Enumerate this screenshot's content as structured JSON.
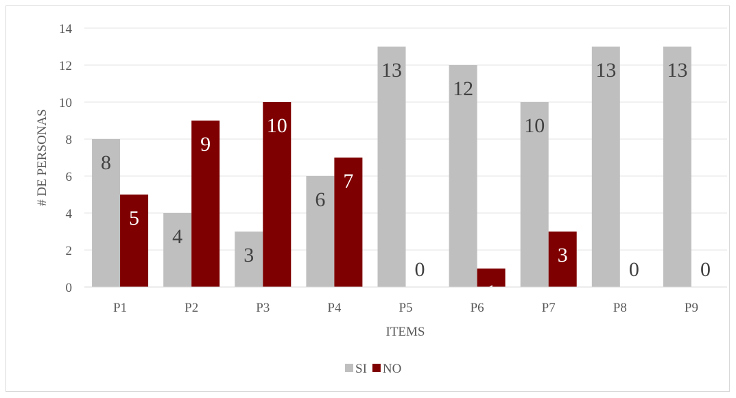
{
  "chart_data": {
    "type": "bar",
    "title": "",
    "xlabel": "ITEMS",
    "ylabel": "# DE PERSONAS",
    "ylim": [
      0,
      14
    ],
    "yticks": [
      0,
      2,
      4,
      6,
      8,
      10,
      12,
      14
    ],
    "grid": true,
    "legend_position": "bottom",
    "categories": [
      "P1",
      "P2",
      "P3",
      "P4",
      "P5",
      "P6",
      "P7",
      "P8",
      "P9"
    ],
    "series": [
      {
        "name": "SI",
        "color": "#bfbfbf",
        "label_color": "#404040",
        "values": [
          8,
          4,
          3,
          6,
          13,
          12,
          10,
          13,
          13
        ]
      },
      {
        "name": "NO",
        "color": "#7f0000",
        "label_color": "#ffffff",
        "values": [
          5,
          9,
          10,
          7,
          0,
          1,
          3,
          0,
          0
        ]
      }
    ]
  }
}
